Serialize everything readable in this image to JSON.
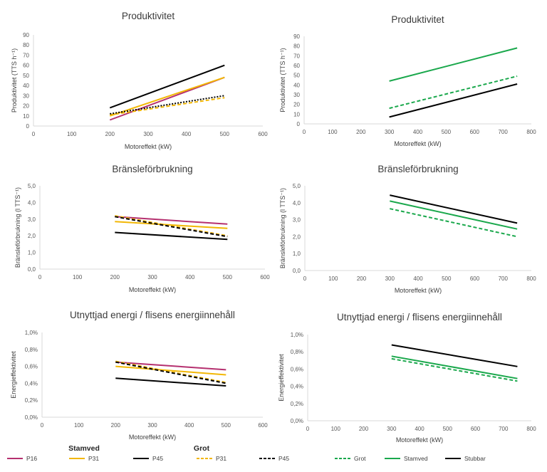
{
  "colors": {
    "P16": "#b5306f",
    "P31": "#f2b705",
    "P45": "#000000",
    "Grot": "#1aa84c",
    "Stamved": "#1aa84c",
    "Stubbar": "#000000",
    "axis": "#d9d9d9",
    "text": "#595959"
  },
  "chart_data": [
    {
      "id": "c1",
      "type": "line",
      "title": "Produktivitet",
      "xlabel": "Motoreffekt (kW)",
      "ylabel": "Produktivitet (TTS h⁻¹)",
      "xlim": [
        0,
        600
      ],
      "ylim": [
        0,
        90
      ],
      "xticks": [
        "0",
        "100",
        "200",
        "300",
        "400",
        "500",
        "600"
      ],
      "yticks": [
        "0",
        "10",
        "20",
        "30",
        "40",
        "50",
        "60",
        "70",
        "80",
        "90"
      ],
      "series": [
        {
          "name": "Stamved P16",
          "color": "P16",
          "dash": false,
          "x": [
            200,
            500
          ],
          "y": [
            6,
            48
          ]
        },
        {
          "name": "Stamved P31",
          "color": "P31",
          "dash": false,
          "x": [
            200,
            500
          ],
          "y": [
            10,
            48
          ]
        },
        {
          "name": "Stamved P45",
          "color": "P45",
          "dash": false,
          "x": [
            200,
            500
          ],
          "y": [
            18,
            60
          ]
        },
        {
          "name": "Grot P31",
          "color": "P31",
          "dash": true,
          "x": [
            200,
            500
          ],
          "y": [
            11,
            28
          ]
        },
        {
          "name": "Grot P45",
          "color": "P45",
          "dash": true,
          "dotted": true,
          "x": [
            200,
            500
          ],
          "y": [
            12,
            30
          ]
        }
      ]
    },
    {
      "id": "c2",
      "type": "line",
      "title": "Produktivitet",
      "xlabel": "Motoreffekt (kW)",
      "ylabel": "Produktivitet (TTS h⁻¹)",
      "xlim": [
        0,
        800
      ],
      "ylim": [
        0,
        90
      ],
      "xticks": [
        "0",
        "100",
        "200",
        "300",
        "400",
        "500",
        "600",
        "700",
        "800"
      ],
      "yticks": [
        "0",
        "10",
        "20",
        "30",
        "40",
        "50",
        "60",
        "70",
        "80",
        "90"
      ],
      "series": [
        {
          "name": "Stamved",
          "color": "Stamved",
          "dash": false,
          "x": [
            300,
            750
          ],
          "y": [
            44,
            78
          ]
        },
        {
          "name": "Grot",
          "color": "Grot",
          "dash": true,
          "x": [
            300,
            750
          ],
          "y": [
            16,
            49
          ]
        },
        {
          "name": "Stubbar",
          "color": "Stubbar",
          "dash": false,
          "x": [
            300,
            750
          ],
          "y": [
            7,
            41
          ]
        }
      ]
    },
    {
      "id": "c3",
      "type": "line",
      "title": "Bränsleförbrukning",
      "xlabel": "Motoreffekt (kW)",
      "ylabel": "Bränsleförbrukning (l TTS⁻¹)",
      "xlim": [
        0,
        600
      ],
      "ylim": [
        0,
        5
      ],
      "xticks": [
        "0",
        "100",
        "200",
        "300",
        "400",
        "500",
        "600"
      ],
      "yticks": [
        "0,0",
        "1,0",
        "2,0",
        "3,0",
        "4,0",
        "5,0"
      ],
      "series": [
        {
          "name": "Stamved P16",
          "color": "P16",
          "dash": false,
          "x": [
            200,
            500
          ],
          "y": [
            3.15,
            2.7
          ]
        },
        {
          "name": "Stamved P31",
          "color": "P31",
          "dash": false,
          "x": [
            200,
            500
          ],
          "y": [
            2.85,
            2.45
          ]
        },
        {
          "name": "Stamved P45",
          "color": "P45",
          "dash": false,
          "x": [
            200,
            500
          ],
          "y": [
            2.2,
            1.78
          ]
        },
        {
          "name": "Grot P31",
          "color": "P31",
          "dash": true,
          "x": [
            200,
            500
          ],
          "y": [
            3.2,
            2.0
          ]
        },
        {
          "name": "Grot P45",
          "color": "P45",
          "dash": true,
          "x": [
            200,
            500
          ],
          "y": [
            3.15,
            1.95
          ]
        }
      ]
    },
    {
      "id": "c4",
      "type": "line",
      "title": "Bränsleförbrukning",
      "xlabel": "Motoreffekt (kW)",
      "ylabel": "Bränsleförbrukning (l TTS⁻¹)",
      "xlim": [
        0,
        800
      ],
      "ylim": [
        0,
        5
      ],
      "xticks": [
        "0",
        "100",
        "200",
        "300",
        "400",
        "500",
        "600",
        "700",
        "800"
      ],
      "yticks": [
        "0,0",
        "1,0",
        "2,0",
        "3,0",
        "4,0",
        "5,0"
      ],
      "series": [
        {
          "name": "Stubbar",
          "color": "Stubbar",
          "dash": false,
          "x": [
            300,
            750
          ],
          "y": [
            4.45,
            2.8
          ]
        },
        {
          "name": "Stamved",
          "color": "Stamved",
          "dash": false,
          "x": [
            300,
            750
          ],
          "y": [
            4.1,
            2.45
          ]
        },
        {
          "name": "Grot",
          "color": "Grot",
          "dash": true,
          "x": [
            300,
            750
          ],
          "y": [
            3.65,
            2.0
          ]
        }
      ]
    },
    {
      "id": "c5",
      "type": "line",
      "title": "Utnyttjad energi / flisens energiinnehåll",
      "xlabel": "Motoreffekt (kW)",
      "ylabel": "Energieffektivitet",
      "xlim": [
        0,
        600
      ],
      "ylim": [
        0,
        1.0
      ],
      "xticks": [
        "0",
        "100",
        "200",
        "300",
        "400",
        "500",
        "600"
      ],
      "yticks": [
        "0,0%",
        "0,2%",
        "0,4%",
        "0,6%",
        "0,8%",
        "1,0%"
      ],
      "series": [
        {
          "name": "Stamved P16",
          "color": "P16",
          "dash": false,
          "x": [
            200,
            500
          ],
          "y": [
            0.65,
            0.56
          ]
        },
        {
          "name": "Stamved P31",
          "color": "P31",
          "dash": false,
          "x": [
            200,
            500
          ],
          "y": [
            0.6,
            0.5
          ]
        },
        {
          "name": "Stamved P45",
          "color": "P45",
          "dash": false,
          "x": [
            200,
            500
          ],
          "y": [
            0.46,
            0.37
          ]
        },
        {
          "name": "Grot P31",
          "color": "P31",
          "dash": true,
          "x": [
            200,
            500
          ],
          "y": [
            0.66,
            0.41
          ]
        },
        {
          "name": "Grot P45",
          "color": "P45",
          "dash": true,
          "x": [
            200,
            500
          ],
          "y": [
            0.65,
            0.4
          ]
        }
      ]
    },
    {
      "id": "c6",
      "type": "line",
      "title": "Utnyttjad energi / flisens energiinnehåll",
      "xlabel": "Motoreffekt (kW)",
      "ylabel": "Energieffektivitet",
      "xlim": [
        0,
        800
      ],
      "ylim": [
        0,
        1.0
      ],
      "xticks": [
        "0",
        "100",
        "200",
        "300",
        "400",
        "500",
        "600",
        "700",
        "800"
      ],
      "yticks": [
        "0,0%",
        "0,2%",
        "0,4%",
        "0,6%",
        "0,8%",
        "1,0%"
      ],
      "series": [
        {
          "name": "Stubbar",
          "color": "Stubbar",
          "dash": false,
          "x": [
            300,
            750
          ],
          "y": [
            0.88,
            0.63
          ]
        },
        {
          "name": "Stamved",
          "color": "Stamved",
          "dash": false,
          "x": [
            300,
            750
          ],
          "y": [
            0.75,
            0.49
          ]
        },
        {
          "name": "Grot",
          "color": "Grot",
          "dash": true,
          "x": [
            300,
            750
          ],
          "y": [
            0.72,
            0.46
          ]
        }
      ]
    }
  ],
  "legend_left": {
    "group_stamved": "Stamved",
    "group_grot": "Grot",
    "items": [
      {
        "label": "P16",
        "color": "P16",
        "dash": false
      },
      {
        "label": "P31",
        "color": "P31",
        "dash": false
      },
      {
        "label": "P45",
        "color": "P45",
        "dash": false
      },
      {
        "label": "P31",
        "color": "P31",
        "dash": true
      },
      {
        "label": "P45",
        "color": "P45",
        "dash": true
      }
    ]
  },
  "legend_right": {
    "items": [
      {
        "label": "Grot",
        "color": "Grot",
        "dash": true
      },
      {
        "label": "Stamved",
        "color": "Stamved",
        "dash": false
      },
      {
        "label": "Stubbar",
        "color": "Stubbar",
        "dash": false
      }
    ]
  }
}
